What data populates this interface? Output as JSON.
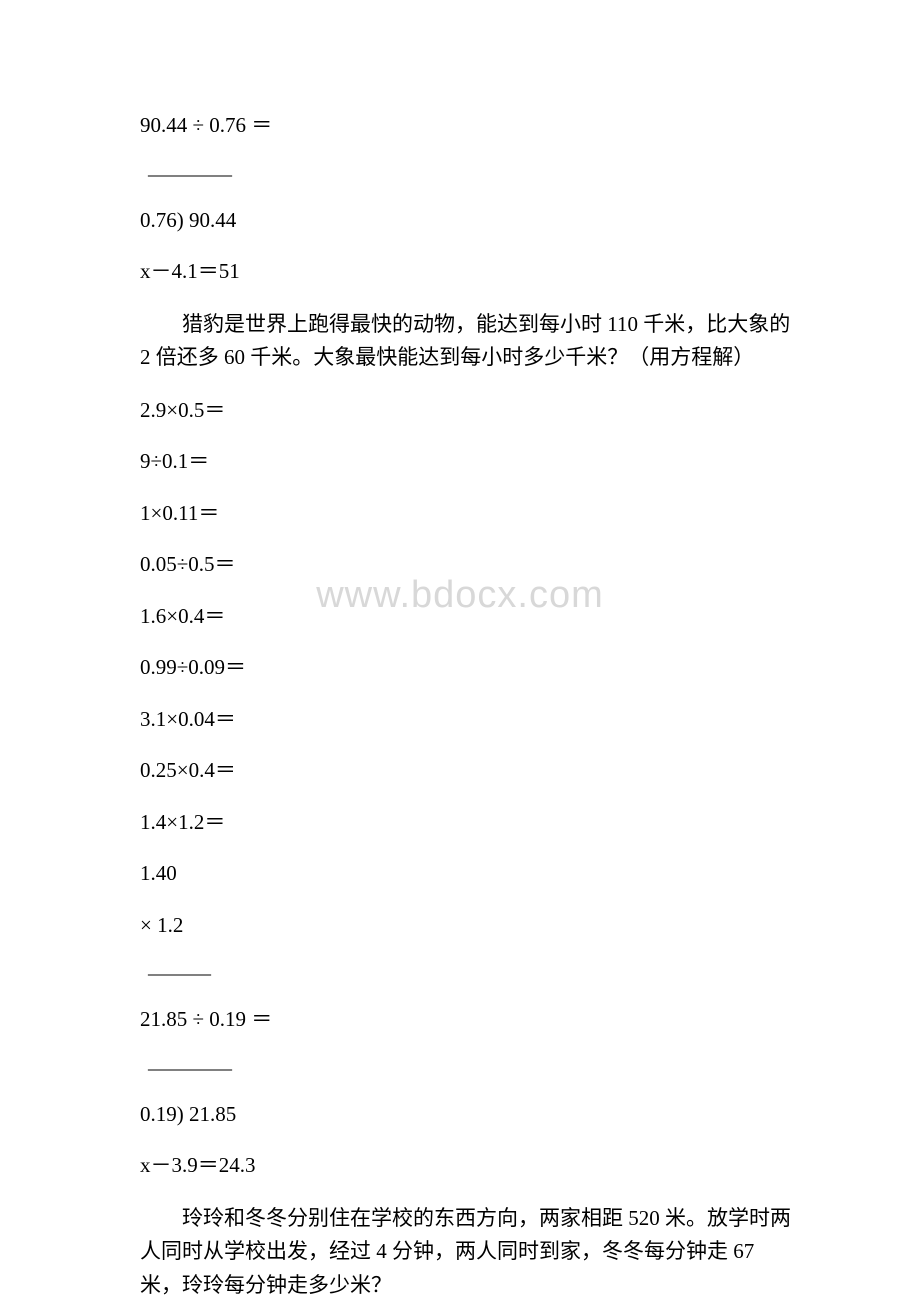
{
  "watermark": "www.bdocx.com",
  "lines": {
    "l1": "90.44 ÷ 0.76 ＝",
    "l2": "————",
    "l3": "0.76) 90.44",
    "l4": "x－4.1＝51",
    "p1": "猎豹是世界上跑得最快的动物，能达到每小时 110 千米，比大象的 2 倍还多 60 千米。大象最快能达到每小时多少千米？（用方程解）",
    "l5": "2.9×0.5＝",
    "l6": "9÷0.1＝",
    "l7": "1×0.11＝",
    "l8": "0.05÷0.5＝",
    "l9": "1.6×0.4＝",
    "l10": "0.99÷0.09＝",
    "l11": "3.1×0.04＝",
    "l12": "0.25×0.4＝",
    "l13": "1.4×1.2＝",
    "l14": " 1.40",
    "l15": "×  1.2",
    "l16": "———",
    "l17": "21.85 ÷ 0.19 ＝",
    "l18": "————",
    "l19": "0.19) 21.85",
    "l20": "x－3.9＝24.3",
    "p2": "玲玲和冬冬分别住在学校的东西方向，两家相距 520 米。放学时两人同时从学校出发，经过 4 分钟，两人同时到家，冬冬每分钟走 67 米，玲玲每分钟走多少米？"
  },
  "style": {
    "background_color": "#ffffff",
    "text_color": "#000000",
    "watermark_color": "#d8d8d8",
    "font_size": 21,
    "watermark_font_size": 38
  }
}
